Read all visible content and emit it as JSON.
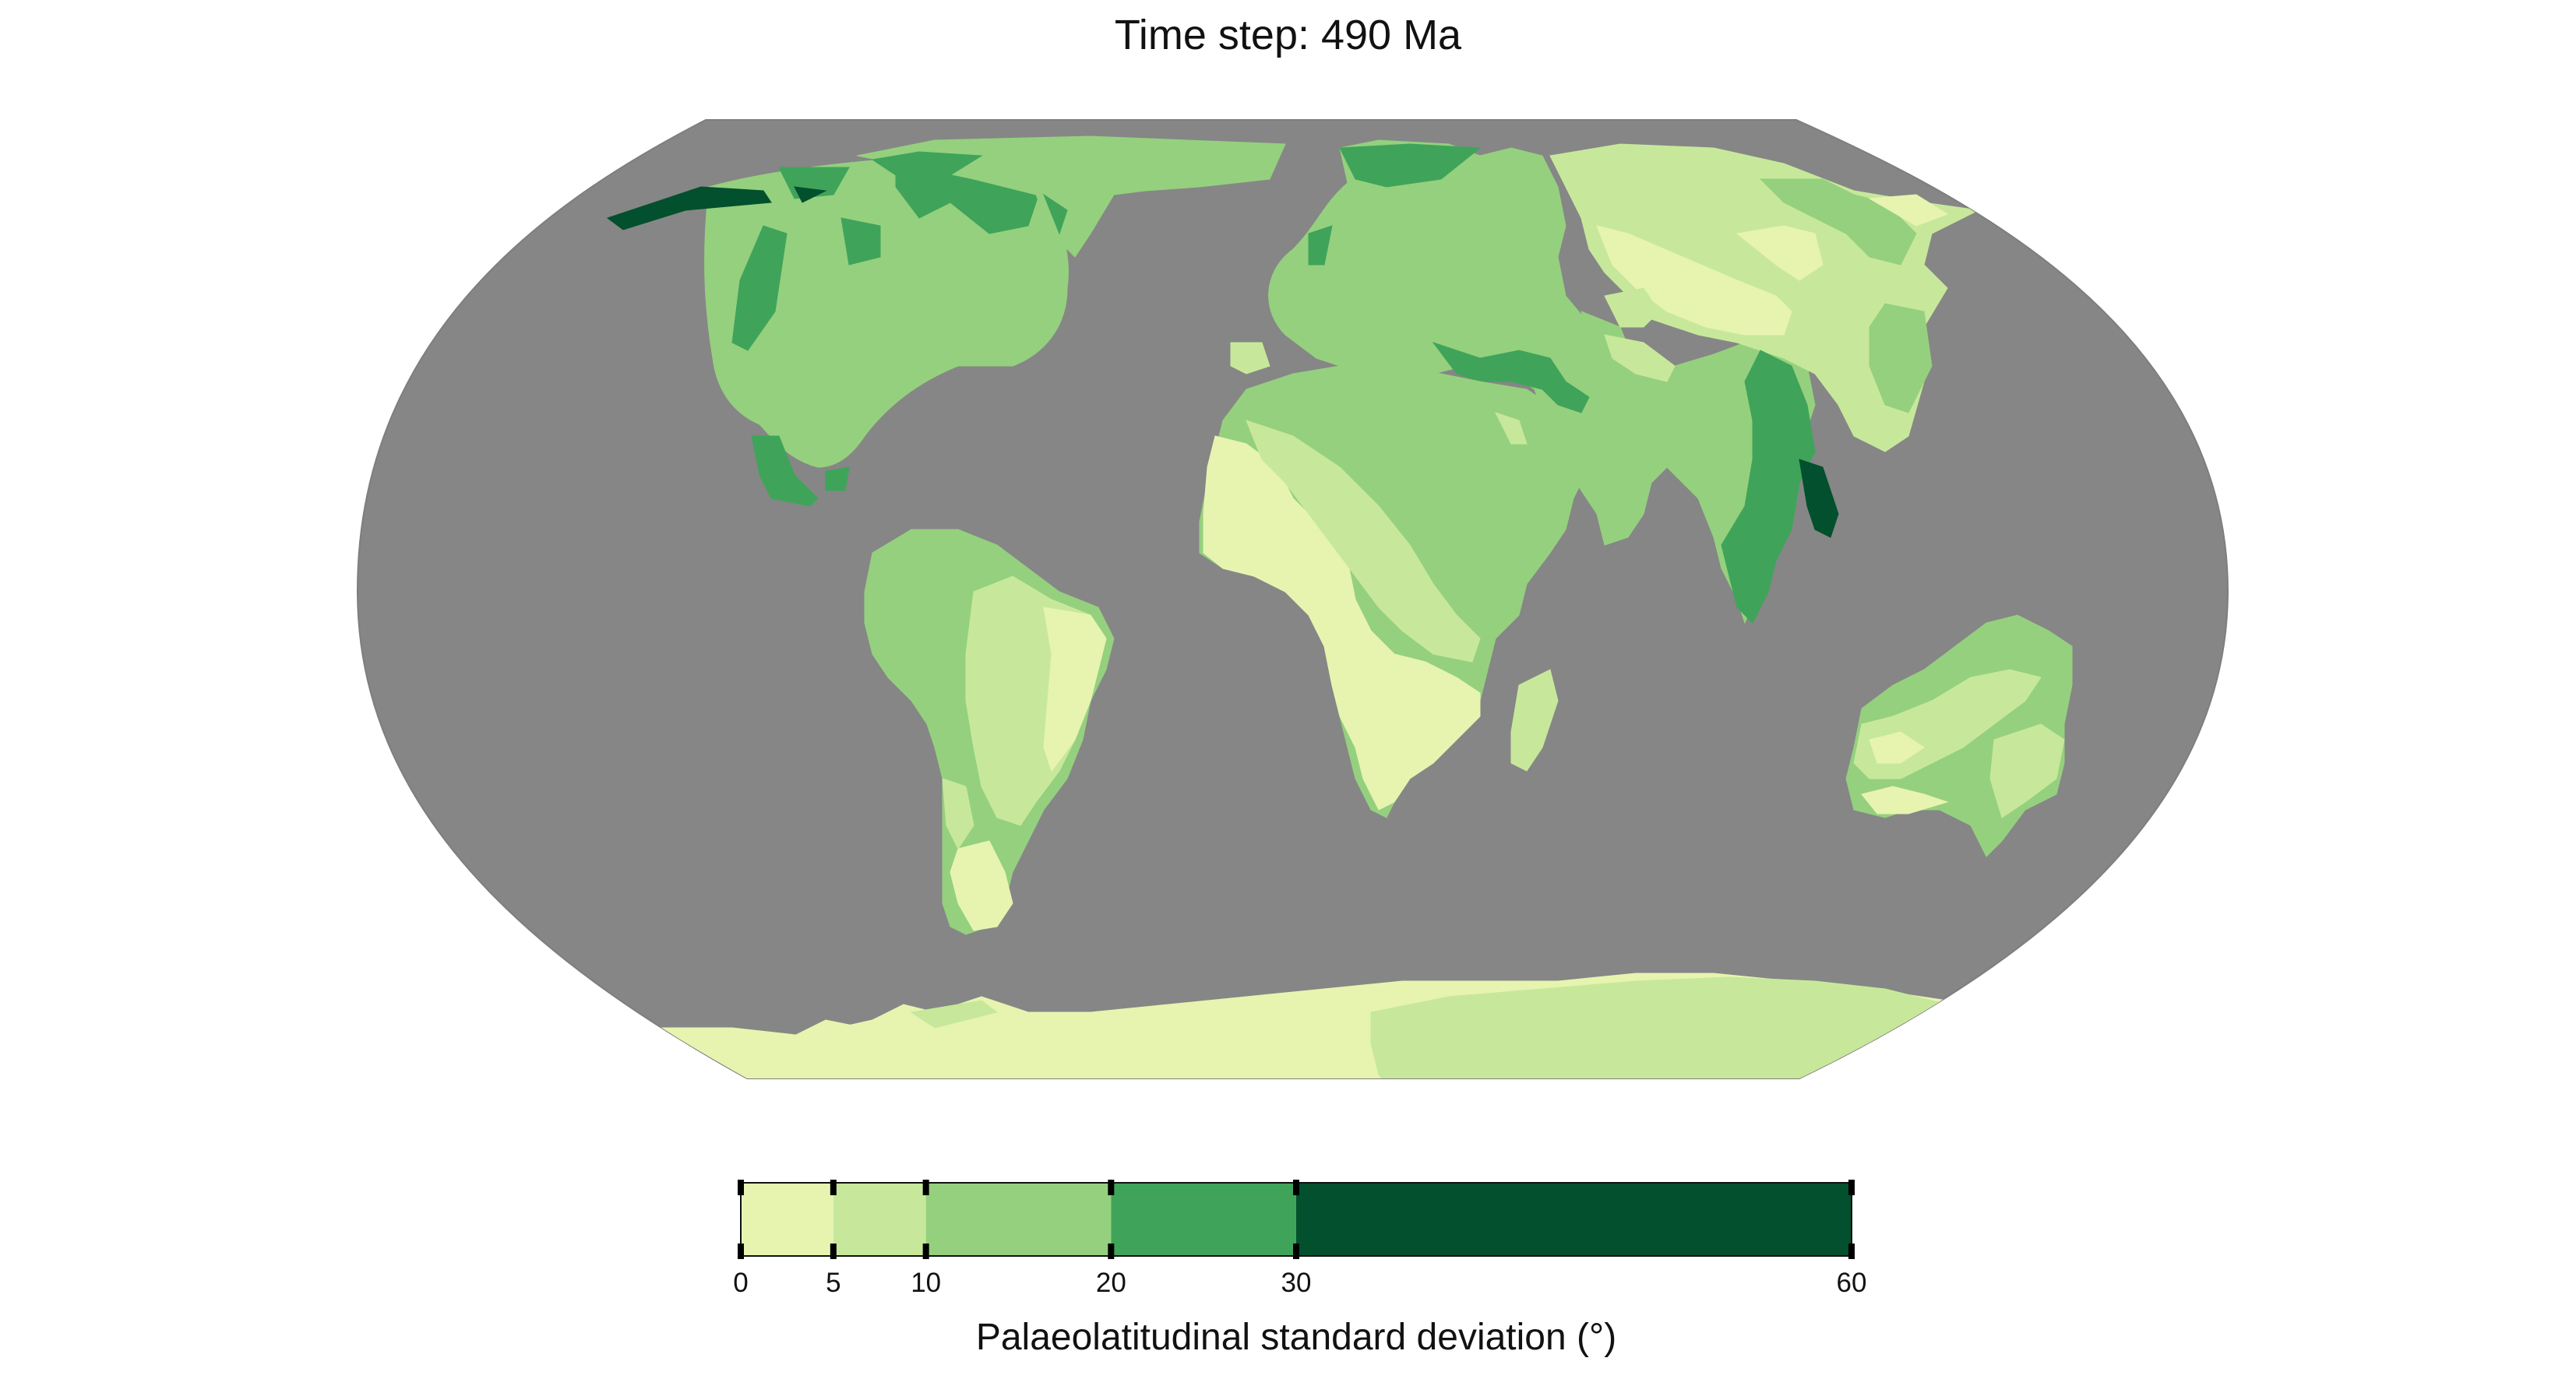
{
  "title": "Time step: 490 Ma",
  "colors": {
    "ocean": "#868686",
    "ocean_edge": "#7e7e7e",
    "class_0_5": "#e6f4b0",
    "class_5_10": "#c7e89b",
    "class_10_20": "#95d07e",
    "class_20_30": "#3fa45a",
    "class_30_60": "#02502d"
  },
  "colorbar": {
    "label": "Palaeolatitudinal standard deviation (°)",
    "ticks": [
      "0",
      "5",
      "10",
      "20",
      "30",
      "60"
    ],
    "bins": [
      {
        "from": 0,
        "to": 5,
        "color": "#e6f4b0"
      },
      {
        "from": 5,
        "to": 10,
        "color": "#c7e89b"
      },
      {
        "from": 10,
        "to": 20,
        "color": "#95d07e"
      },
      {
        "from": 20,
        "to": 30,
        "color": "#3fa45a"
      },
      {
        "from": 30,
        "to": 60,
        "color": "#02502d"
      }
    ]
  },
  "map": {
    "projection": "Robinson",
    "legend_placement": "bottom"
  }
}
